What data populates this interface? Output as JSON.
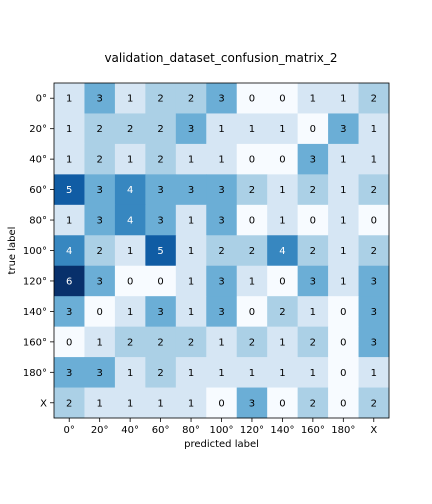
{
  "chart_data": {
    "type": "heatmap",
    "title": "validation_dataset_confusion_matrix_2",
    "xlabel": "predicted label",
    "ylabel": "true label",
    "categories": [
      "0°",
      "20°",
      "40°",
      "60°",
      "80°",
      "100°",
      "120°",
      "140°",
      "160°",
      "180°",
      "X"
    ],
    "matrix": [
      [
        1,
        3,
        1,
        2,
        2,
        3,
        0,
        0,
        1,
        1,
        2
      ],
      [
        1,
        2,
        2,
        2,
        3,
        1,
        1,
        1,
        0,
        3,
        1
      ],
      [
        1,
        2,
        1,
        2,
        1,
        1,
        0,
        0,
        3,
        1,
        1
      ],
      [
        5,
        3,
        4,
        3,
        3,
        3,
        2,
        1,
        2,
        1,
        2
      ],
      [
        1,
        3,
        4,
        3,
        1,
        3,
        0,
        1,
        0,
        1,
        0
      ],
      [
        4,
        2,
        1,
        5,
        1,
        2,
        2,
        4,
        2,
        1,
        2
      ],
      [
        6,
        3,
        0,
        0,
        1,
        3,
        1,
        0,
        3,
        1,
        3
      ],
      [
        3,
        0,
        1,
        3,
        1,
        3,
        0,
        2,
        1,
        0,
        3
      ],
      [
        0,
        1,
        2,
        2,
        2,
        1,
        2,
        1,
        2,
        0,
        3
      ],
      [
        3,
        3,
        1,
        2,
        1,
        1,
        1,
        1,
        1,
        0,
        1
      ],
      [
        2,
        1,
        1,
        1,
        1,
        0,
        3,
        0,
        2,
        0,
        2
      ]
    ],
    "vmin": 0,
    "vmax": 6,
    "colormap": "Blues",
    "colormap_stops": [
      "#f7fbff",
      "#deebf7",
      "#c6dbef",
      "#9ecae1",
      "#6baed6",
      "#4292c6",
      "#2171b5",
      "#08519c",
      "#08306b"
    ],
    "grid": false,
    "legend": "none"
  }
}
